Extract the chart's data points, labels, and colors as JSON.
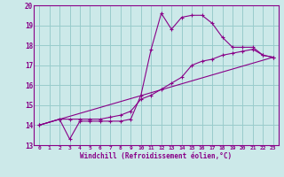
{
  "xlabel": "Windchill (Refroidissement éolien,°C)",
  "xlim": [
    -0.5,
    23.5
  ],
  "ylim": [
    13,
    20
  ],
  "xticks": [
    0,
    1,
    2,
    3,
    4,
    5,
    6,
    7,
    8,
    9,
    10,
    11,
    12,
    13,
    14,
    15,
    16,
    17,
    18,
    19,
    20,
    21,
    22,
    23
  ],
  "yticks": [
    13,
    14,
    15,
    16,
    17,
    18,
    19,
    20
  ],
  "background_color": "#cce9e9",
  "line_color": "#880088",
  "grid_color": "#99cccc",
  "lines": [
    {
      "x": [
        0,
        2,
        3,
        4,
        5,
        6,
        7,
        8,
        9,
        10,
        11,
        12,
        13,
        14,
        15,
        16,
        17,
        18,
        19,
        20,
        21,
        22,
        23
      ],
      "y": [
        14.0,
        14.3,
        13.3,
        14.2,
        14.2,
        14.2,
        14.2,
        14.2,
        14.3,
        15.5,
        17.8,
        19.6,
        18.8,
        19.4,
        19.5,
        19.5,
        19.1,
        18.4,
        17.9,
        17.9,
        17.9,
        17.5,
        17.4
      ],
      "markers": true
    },
    {
      "x": [
        0,
        2,
        3,
        4,
        5,
        6,
        7,
        8,
        9,
        10,
        11,
        12,
        13,
        14,
        15,
        16,
        17,
        18,
        19,
        20,
        21,
        22,
        23
      ],
      "y": [
        14.0,
        14.3,
        14.3,
        14.3,
        14.3,
        14.3,
        14.4,
        14.5,
        14.7,
        15.3,
        15.5,
        15.8,
        16.1,
        16.4,
        17.0,
        17.2,
        17.3,
        17.5,
        17.6,
        17.7,
        17.8,
        17.5,
        17.4
      ],
      "markers": true
    },
    {
      "x": [
        0,
        23
      ],
      "y": [
        14.0,
        17.4
      ],
      "markers": false
    }
  ]
}
